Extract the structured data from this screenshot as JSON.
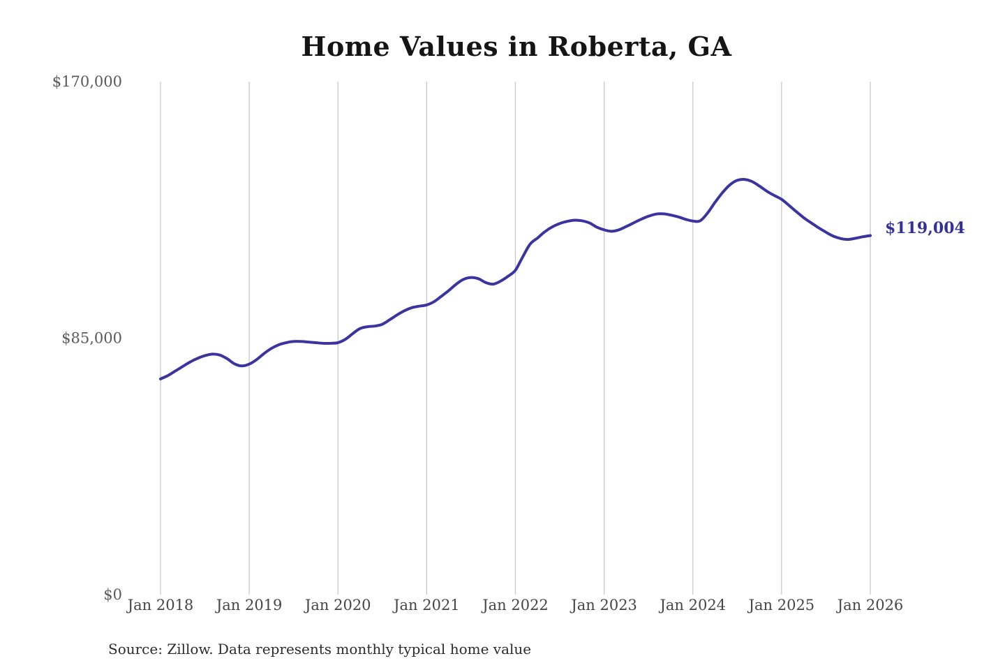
{
  "title": "Home Values in Roberta, GA",
  "source_note": "Source: Zillow. Data represents monthly typical home value",
  "end_label": "$119,004",
  "colors": {
    "line": "#3a34a0",
    "grid": "#c9c9c9",
    "y_tick_label": "#595959",
    "x_tick_label": "#454545",
    "title": "#151515",
    "end_label": "#333099",
    "source": "#2b2b2b"
  },
  "chart_data": {
    "type": "line",
    "title": "Home Values in Roberta, GA",
    "xlabel": "",
    "ylabel": "",
    "ylim": [
      0,
      170000
    ],
    "grid": "vertical-only",
    "legend": false,
    "x_tick_labels": [
      "Jan 2018",
      "Jan 2019",
      "Jan 2020",
      "Jan 2021",
      "Jan 2022",
      "Jan 2023",
      "Jan 2024",
      "Jan 2025",
      "Jan 2026"
    ],
    "y_ticks": [
      {
        "value": 0,
        "label": "$0"
      },
      {
        "value": 85000,
        "label": "$85,000"
      },
      {
        "value": 170000,
        "label": "$170,000"
      }
    ],
    "x_start": "2018-01",
    "x_cadence": "monthly",
    "x_end": "2026-01",
    "end_value": 119004,
    "end_value_label": "$119,004",
    "series": [
      {
        "name": "Monthly typical home value",
        "values": [
          71500,
          72600,
          74100,
          75600,
          77100,
          78300,
          79200,
          79700,
          79400,
          78200,
          76500,
          75800,
          76400,
          77900,
          79900,
          81600,
          82800,
          83500,
          83900,
          83900,
          83700,
          83500,
          83300,
          83300,
          83500,
          84600,
          86500,
          88200,
          88800,
          89000,
          89600,
          91100,
          92700,
          94100,
          95100,
          95600,
          96000,
          97100,
          98900,
          100800,
          102900,
          104500,
          105100,
          104700,
          103400,
          102900,
          103900,
          105500,
          107500,
          112000,
          116200,
          118200,
          120300,
          121900,
          123000,
          123700,
          124100,
          123900,
          123200,
          121800,
          120900,
          120400,
          120900,
          122000,
          123200,
          124400,
          125400,
          126100,
          126200,
          125800,
          125200,
          124400,
          123800,
          123900,
          126500,
          130000,
          133200,
          135800,
          137300,
          137600,
          136900,
          135400,
          133700,
          132300,
          131000,
          129000,
          126900,
          124900,
          123200,
          121600,
          120100,
          118800,
          118000,
          117700,
          118100,
          118600,
          119004
        ]
      }
    ]
  }
}
